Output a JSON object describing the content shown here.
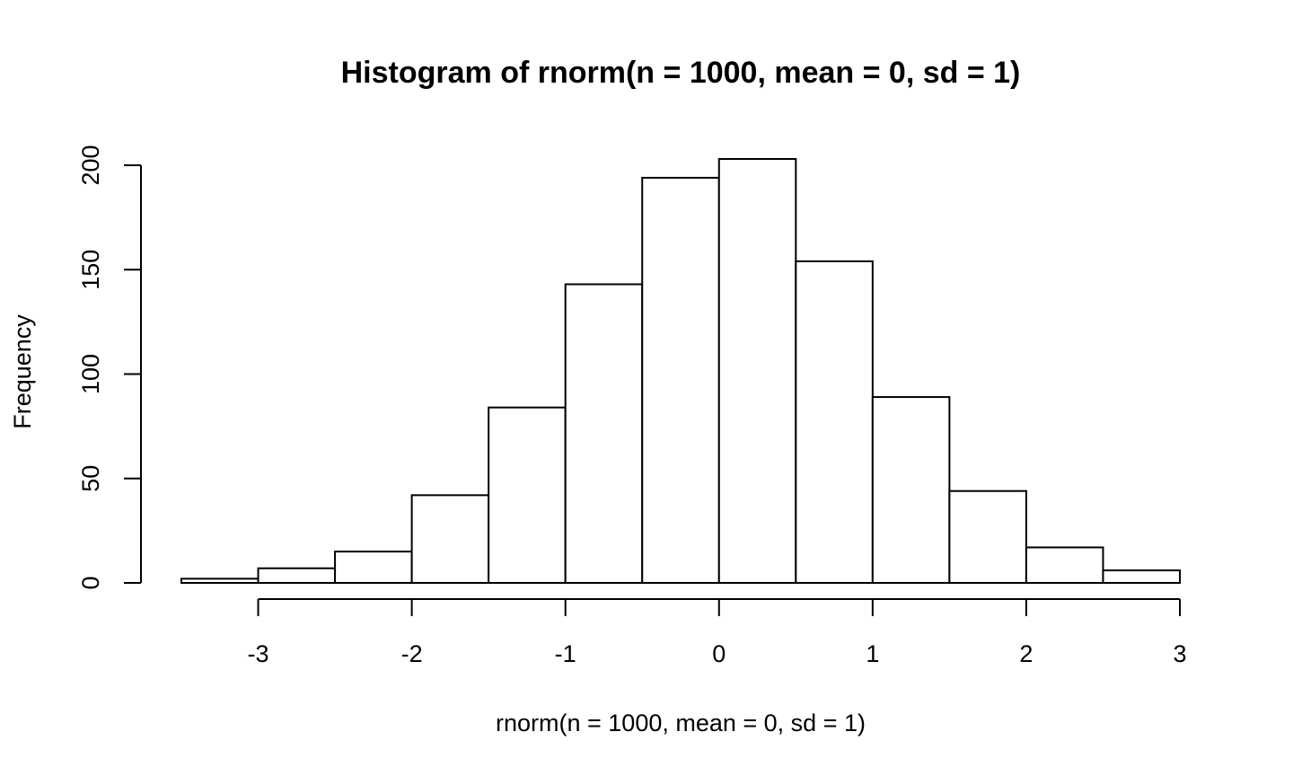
{
  "chart_data": {
    "type": "bar",
    "title": "Histogram of rnorm(n = 1000, mean = 0, sd = 1)",
    "xlabel": "rnorm(n = 1000, mean = 0, sd = 1)",
    "ylabel": "Frequency",
    "bins": [
      {
        "x0": -3.5,
        "x1": -3.0,
        "count": 2
      },
      {
        "x0": -3.0,
        "x1": -2.5,
        "count": 7
      },
      {
        "x0": -2.5,
        "x1": -2.0,
        "count": 15
      },
      {
        "x0": -2.0,
        "x1": -1.5,
        "count": 42
      },
      {
        "x0": -1.5,
        "x1": -1.0,
        "count": 84
      },
      {
        "x0": -1.0,
        "x1": -0.5,
        "count": 143
      },
      {
        "x0": -0.5,
        "x1": 0.0,
        "count": 194
      },
      {
        "x0": 0.0,
        "x1": 0.5,
        "count": 203
      },
      {
        "x0": 0.5,
        "x1": 1.0,
        "count": 154
      },
      {
        "x0": 1.0,
        "x1": 1.5,
        "count": 89
      },
      {
        "x0": 1.5,
        "x1": 2.0,
        "count": 44
      },
      {
        "x0": 2.0,
        "x1": 2.5,
        "count": 17
      },
      {
        "x0": 2.5,
        "x1": 3.0,
        "count": 6
      }
    ],
    "xlim": [
      -3.5,
      3.0
    ],
    "ylim": [
      0,
      203
    ],
    "x_ticks": [
      -3,
      -2,
      -1,
      0,
      1,
      2,
      3
    ],
    "x_tick_labels": [
      "-3",
      "-2",
      "-1",
      "0",
      "1",
      "2",
      "3"
    ],
    "y_ticks": [
      0,
      50,
      100,
      150,
      200
    ],
    "y_tick_labels": [
      "0",
      "50",
      "100",
      "150",
      "200"
    ],
    "grid": false,
    "legend": "none",
    "bar_fill": "#ffffff",
    "bar_stroke": "#000000"
  }
}
